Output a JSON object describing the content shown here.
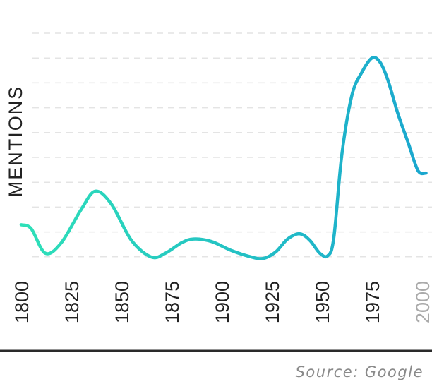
{
  "chart_data": {
    "type": "line",
    "ylabel": "MENTIONS",
    "xlabel": "",
    "title": "",
    "xlim": [
      1800,
      2005
    ],
    "ylim": [
      0,
      10
    ],
    "xticks": [
      {
        "value": 1800,
        "label": "1800",
        "muted": false
      },
      {
        "value": 1825,
        "label": "1825",
        "muted": false
      },
      {
        "value": 1850,
        "label": "1850",
        "muted": false
      },
      {
        "value": 1875,
        "label": "1875",
        "muted": false
      },
      {
        "value": 1900,
        "label": "1900",
        "muted": false
      },
      {
        "value": 1925,
        "label": "1925",
        "muted": false
      },
      {
        "value": 1950,
        "label": "1950",
        "muted": false
      },
      {
        "value": 1975,
        "label": "1975",
        "muted": false
      },
      {
        "value": 2000,
        "label": "2000",
        "muted": true
      }
    ],
    "grid": true,
    "gradient": [
      "#2ee0b8",
      "#1aa6cf"
    ],
    "x": [
      1800,
      1805,
      1812,
      1820,
      1830,
      1837,
      1845,
      1855,
      1865,
      1872,
      1880,
      1886,
      1895,
      1905,
      1915,
      1921,
      1927,
      1933,
      1939,
      1944,
      1949,
      1953,
      1956,
      1960,
      1965,
      1970,
      1975,
      1979,
      1983,
      1988,
      1993,
      1998,
      2002
    ],
    "y": [
      1.3,
      1.15,
      0.2,
      0.6,
      1.9,
      2.6,
      2.1,
      0.7,
      0.05,
      0.2,
      0.6,
      0.75,
      0.65,
      0.3,
      0.05,
      0.0,
      0.25,
      0.75,
      0.95,
      0.7,
      0.2,
      0.1,
      0.8,
      4.0,
      6.3,
      7.2,
      7.75,
      7.6,
      6.9,
      5.6,
      4.5,
      3.4,
      3.3
    ]
  },
  "source": "Source: Google"
}
